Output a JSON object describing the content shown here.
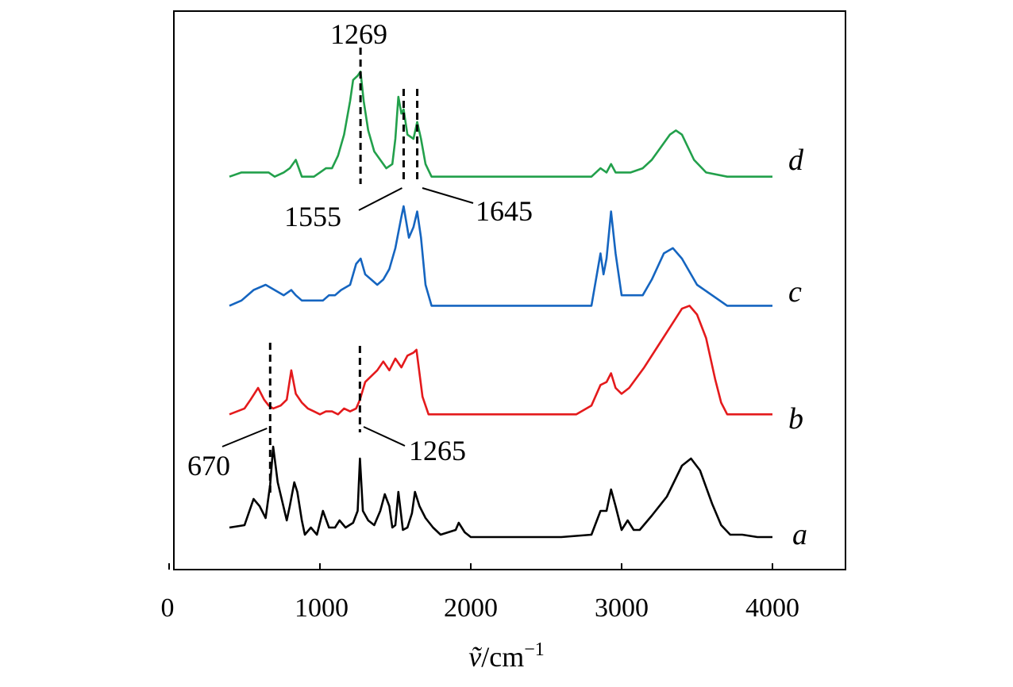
{
  "chart_data": {
    "type": "line",
    "title": "",
    "xlabel_symbol": "ṽ",
    "xlabel_unit": "/cm",
    "xlabel_exp": "−1",
    "ylabel": "",
    "xlim": [
      0,
      4500
    ],
    "ylim": [
      0,
      100
    ],
    "grid": false,
    "x_ticks": [
      0,
      1000,
      2000,
      3000,
      4000
    ],
    "x_tick_labels": [
      "0",
      "1000",
      "2000",
      "3000",
      "4000"
    ],
    "series": [
      {
        "name": "a",
        "color": "#000000",
        "label": "a",
        "points": [
          [
            400,
            7
          ],
          [
            500,
            8
          ],
          [
            560,
            19
          ],
          [
            600,
            16
          ],
          [
            640,
            11
          ],
          [
            670,
            25
          ],
          [
            690,
            41
          ],
          [
            720,
            26
          ],
          [
            750,
            18
          ],
          [
            780,
            10
          ],
          [
            800,
            16
          ],
          [
            830,
            26
          ],
          [
            850,
            22
          ],
          [
            880,
            10
          ],
          [
            900,
            4
          ],
          [
            940,
            7
          ],
          [
            980,
            4
          ],
          [
            1020,
            14
          ],
          [
            1060,
            7
          ],
          [
            1100,
            7
          ],
          [
            1130,
            10
          ],
          [
            1170,
            7
          ],
          [
            1220,
            9
          ],
          [
            1250,
            14
          ],
          [
            1265,
            36
          ],
          [
            1285,
            14
          ],
          [
            1320,
            10
          ],
          [
            1360,
            8
          ],
          [
            1400,
            14
          ],
          [
            1430,
            21
          ],
          [
            1460,
            16
          ],
          [
            1480,
            7
          ],
          [
            1500,
            8
          ],
          [
            1520,
            22
          ],
          [
            1550,
            6
          ],
          [
            1580,
            7
          ],
          [
            1610,
            13
          ],
          [
            1630,
            22
          ],
          [
            1660,
            16
          ],
          [
            1700,
            11
          ],
          [
            1750,
            7
          ],
          [
            1800,
            4
          ],
          [
            1850,
            5
          ],
          [
            1900,
            6
          ],
          [
            1920,
            9
          ],
          [
            1960,
            5
          ],
          [
            2000,
            3
          ],
          [
            2200,
            3
          ],
          [
            2400,
            3
          ],
          [
            2600,
            3
          ],
          [
            2800,
            4
          ],
          [
            2860,
            14
          ],
          [
            2900,
            14
          ],
          [
            2930,
            23
          ],
          [
            2960,
            16
          ],
          [
            3000,
            6
          ],
          [
            3040,
            10
          ],
          [
            3080,
            6
          ],
          [
            3120,
            6
          ],
          [
            3200,
            12
          ],
          [
            3300,
            20
          ],
          [
            3400,
            33
          ],
          [
            3460,
            36
          ],
          [
            3520,
            31
          ],
          [
            3600,
            17
          ],
          [
            3660,
            8
          ],
          [
            3720,
            4
          ],
          [
            3800,
            4
          ],
          [
            3900,
            3
          ],
          [
            4000,
            3
          ]
        ]
      },
      {
        "name": "b",
        "color": "#e41a1c",
        "label": "b",
        "points": [
          [
            400,
            1
          ],
          [
            500,
            3
          ],
          [
            540,
            6
          ],
          [
            590,
            10
          ],
          [
            630,
            6
          ],
          [
            660,
            4
          ],
          [
            690,
            3
          ],
          [
            740,
            4
          ],
          [
            780,
            6
          ],
          [
            810,
            16
          ],
          [
            840,
            8
          ],
          [
            880,
            5
          ],
          [
            920,
            3
          ],
          [
            960,
            2
          ],
          [
            1000,
            1
          ],
          [
            1040,
            2
          ],
          [
            1080,
            2
          ],
          [
            1120,
            1
          ],
          [
            1160,
            3
          ],
          [
            1200,
            2
          ],
          [
            1240,
            3
          ],
          [
            1265,
            6
          ],
          [
            1300,
            12
          ],
          [
            1340,
            14
          ],
          [
            1380,
            16
          ],
          [
            1420,
            19
          ],
          [
            1460,
            16
          ],
          [
            1500,
            20
          ],
          [
            1540,
            17
          ],
          [
            1580,
            21
          ],
          [
            1620,
            22
          ],
          [
            1640,
            23
          ],
          [
            1680,
            7
          ],
          [
            1720,
            1
          ],
          [
            1800,
            1
          ],
          [
            1900,
            1
          ],
          [
            2000,
            1
          ],
          [
            2200,
            1
          ],
          [
            2400,
            1
          ],
          [
            2600,
            1
          ],
          [
            2700,
            1
          ],
          [
            2800,
            4
          ],
          [
            2860,
            11
          ],
          [
            2900,
            12
          ],
          [
            2930,
            15
          ],
          [
            2960,
            10
          ],
          [
            3000,
            8
          ],
          [
            3050,
            10
          ],
          [
            3150,
            17
          ],
          [
            3250,
            25
          ],
          [
            3350,
            33
          ],
          [
            3400,
            37
          ],
          [
            3450,
            38
          ],
          [
            3500,
            35
          ],
          [
            3560,
            27
          ],
          [
            3620,
            13
          ],
          [
            3660,
            5
          ],
          [
            3700,
            1
          ],
          [
            3800,
            1
          ],
          [
            3900,
            1
          ],
          [
            4000,
            1
          ]
        ]
      },
      {
        "name": "c",
        "color": "#1565c0",
        "label": "c",
        "points": [
          [
            400,
            1
          ],
          [
            480,
            2
          ],
          [
            560,
            4
          ],
          [
            640,
            5
          ],
          [
            700,
            4
          ],
          [
            760,
            3
          ],
          [
            810,
            4
          ],
          [
            840,
            3
          ],
          [
            880,
            2
          ],
          [
            920,
            2
          ],
          [
            970,
            2
          ],
          [
            1020,
            2
          ],
          [
            1060,
            3
          ],
          [
            1100,
            3
          ],
          [
            1140,
            4
          ],
          [
            1200,
            5
          ],
          [
            1240,
            9
          ],
          [
            1270,
            10
          ],
          [
            1300,
            7
          ],
          [
            1340,
            6
          ],
          [
            1380,
            5
          ],
          [
            1420,
            6
          ],
          [
            1460,
            8
          ],
          [
            1500,
            12
          ],
          [
            1540,
            18
          ],
          [
            1555,
            20
          ],
          [
            1590,
            14
          ],
          [
            1620,
            16
          ],
          [
            1645,
            19
          ],
          [
            1670,
            14
          ],
          [
            1700,
            5
          ],
          [
            1740,
            1
          ],
          [
            1800,
            1
          ],
          [
            2000,
            1
          ],
          [
            2200,
            1
          ],
          [
            2400,
            1
          ],
          [
            2600,
            1
          ],
          [
            2800,
            1
          ],
          [
            2860,
            11
          ],
          [
            2880,
            7
          ],
          [
            2900,
            10
          ],
          [
            2930,
            19
          ],
          [
            2960,
            11
          ],
          [
            3000,
            3
          ],
          [
            3060,
            3
          ],
          [
            3140,
            3
          ],
          [
            3200,
            6
          ],
          [
            3280,
            11
          ],
          [
            3340,
            12
          ],
          [
            3400,
            10
          ],
          [
            3500,
            5
          ],
          [
            3600,
            3
          ],
          [
            3700,
            1
          ],
          [
            3800,
            1
          ],
          [
            3900,
            1
          ],
          [
            4000,
            1
          ]
        ]
      },
      {
        "name": "d",
        "color": "#22a04b",
        "label": "d",
        "points": [
          [
            400,
            1
          ],
          [
            480,
            2
          ],
          [
            540,
            2
          ],
          [
            600,
            2
          ],
          [
            660,
            2
          ],
          [
            700,
            1
          ],
          [
            760,
            2
          ],
          [
            800,
            3
          ],
          [
            840,
            5
          ],
          [
            880,
            1
          ],
          [
            920,
            1
          ],
          [
            960,
            1
          ],
          [
            1000,
            2
          ],
          [
            1040,
            3
          ],
          [
            1080,
            3
          ],
          [
            1120,
            6
          ],
          [
            1160,
            11
          ],
          [
            1200,
            19
          ],
          [
            1220,
            24
          ],
          [
            1250,
            25
          ],
          [
            1269,
            26
          ],
          [
            1290,
            19
          ],
          [
            1320,
            12
          ],
          [
            1360,
            7
          ],
          [
            1400,
            5
          ],
          [
            1440,
            3
          ],
          [
            1480,
            4
          ],
          [
            1500,
            10
          ],
          [
            1520,
            20
          ],
          [
            1540,
            16
          ],
          [
            1555,
            17
          ],
          [
            1580,
            11
          ],
          [
            1620,
            10
          ],
          [
            1645,
            14
          ],
          [
            1670,
            10
          ],
          [
            1700,
            4
          ],
          [
            1740,
            1
          ],
          [
            1800,
            1
          ],
          [
            2000,
            1
          ],
          [
            2200,
            1
          ],
          [
            2400,
            1
          ],
          [
            2600,
            1
          ],
          [
            2800,
            1
          ],
          [
            2860,
            3
          ],
          [
            2900,
            2
          ],
          [
            2930,
            4
          ],
          [
            2960,
            2
          ],
          [
            3000,
            2
          ],
          [
            3060,
            2
          ],
          [
            3140,
            3
          ],
          [
            3200,
            5
          ],
          [
            3260,
            8
          ],
          [
            3320,
            11
          ],
          [
            3360,
            12
          ],
          [
            3400,
            11
          ],
          [
            3480,
            5
          ],
          [
            3560,
            2
          ],
          [
            3700,
            1
          ],
          [
            3800,
            1
          ],
          [
            3900,
            1
          ],
          [
            4000,
            1
          ]
        ]
      }
    ],
    "annotations": [
      {
        "label": "1269",
        "x": 1269,
        "series": "d"
      },
      {
        "label": "1555",
        "x": 1555,
        "series": "d"
      },
      {
        "label": "1645",
        "x": 1645,
        "series": "d"
      },
      {
        "label": "670",
        "x": 670,
        "series": "a"
      },
      {
        "label": "1265",
        "x": 1265,
        "series": "a"
      }
    ]
  }
}
